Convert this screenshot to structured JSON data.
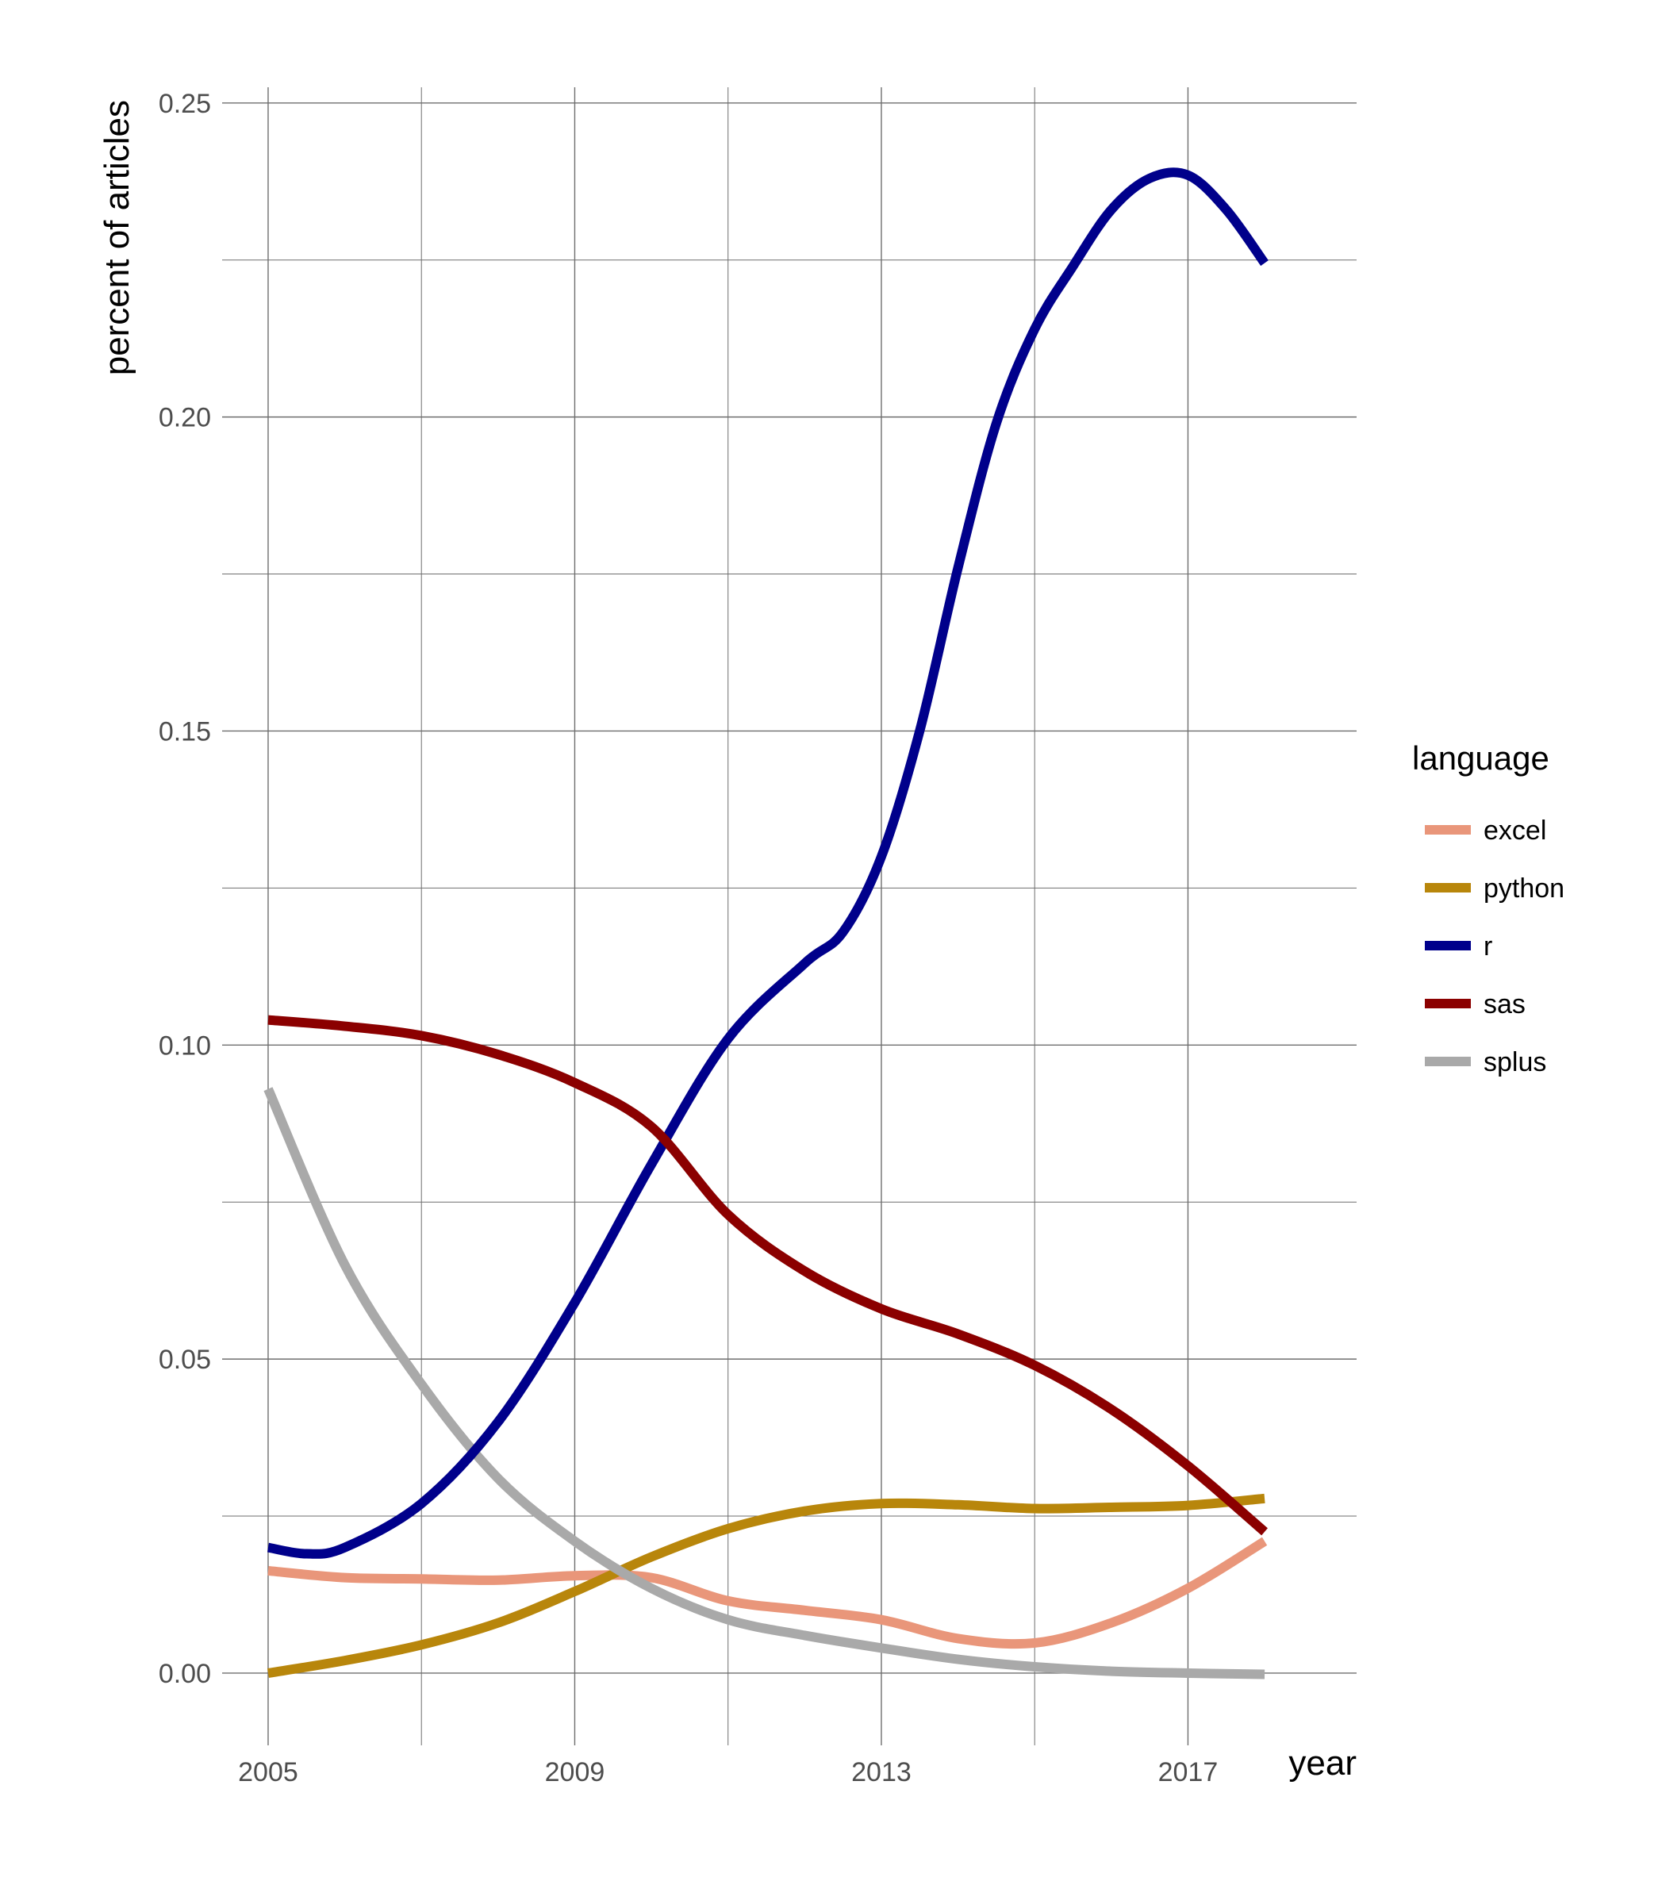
{
  "chart_data": {
    "type": "line",
    "title": "",
    "xlabel": "year",
    "ylabel": "percent of articles",
    "xlim": [
      2004.4,
      2019.2
    ],
    "ylim": [
      -0.0115,
      0.2525
    ],
    "x_ticks": [
      2005,
      2009,
      2013,
      2017
    ],
    "x_tick_labels": [
      "2005",
      "2009",
      "2013",
      "2017"
    ],
    "x_minor_ticks": [
      2007,
      2011,
      2015
    ],
    "y_ticks": [
      0.0,
      0.05,
      0.1,
      0.15,
      0.2,
      0.25
    ],
    "y_tick_labels": [
      "0.00",
      "0.05",
      "0.10",
      "0.15",
      "0.20",
      "0.25"
    ],
    "y_minor_ticks": [
      0.025,
      0.075,
      0.125,
      0.175,
      0.225
    ],
    "grid": true,
    "legend": {
      "title": "language",
      "position": "right"
    },
    "series": [
      {
        "name": "excel",
        "color": "#E9967A",
        "x": [
          2005,
          2006,
          2007,
          2008,
          2009,
          2010,
          2011,
          2012,
          2013,
          2014,
          2015,
          2016,
          2017,
          2018
        ],
        "values": [
          0.0163,
          0.0152,
          0.015,
          0.0148,
          0.0155,
          0.0152,
          0.0115,
          0.01,
          0.0085,
          0.0055,
          0.0048,
          0.008,
          0.0135,
          0.021
        ]
      },
      {
        "name": "python",
        "color": "#B8860B",
        "x": [
          2005,
          2006,
          2007,
          2008,
          2009,
          2010,
          2011,
          2012,
          2013,
          2014,
          2015,
          2016,
          2017,
          2018
        ],
        "values": [
          0.0,
          0.002,
          0.0045,
          0.008,
          0.013,
          0.0185,
          0.023,
          0.0258,
          0.027,
          0.0268,
          0.0262,
          0.0264,
          0.0267,
          0.0278
        ]
      },
      {
        "name": "r",
        "color": "#00008B",
        "x": [
          2005,
          2005.5,
          2006,
          2007,
          2008,
          2009,
          2010,
          2011,
          2012,
          2012.5,
          2013,
          2013.5,
          2014,
          2014.5,
          2015,
          2015.5,
          2016,
          2016.5,
          2017,
          2017.5,
          2018
        ],
        "values": [
          0.02,
          0.019,
          0.02,
          0.027,
          0.04,
          0.059,
          0.081,
          0.101,
          0.113,
          0.118,
          0.13,
          0.15,
          0.176,
          0.199,
          0.214,
          0.224,
          0.233,
          0.238,
          0.2385,
          0.233,
          0.2245
        ]
      },
      {
        "name": "sas",
        "color": "#8B0000",
        "x": [
          2005,
          2006,
          2007,
          2008,
          2009,
          2010,
          2011,
          2012,
          2013,
          2014,
          2015,
          2016,
          2017,
          2018
        ],
        "values": [
          0.104,
          0.103,
          0.1015,
          0.0985,
          0.094,
          0.087,
          0.073,
          0.064,
          0.058,
          0.054,
          0.049,
          0.042,
          0.033,
          0.0225
        ]
      },
      {
        "name": "splus",
        "color": "#A9A9A9",
        "x": [
          2005,
          2006,
          2007,
          2008,
          2009,
          2010,
          2011,
          2012,
          2013,
          2014,
          2015,
          2016,
          2017,
          2018
        ],
        "values": [
          0.093,
          0.065,
          0.046,
          0.031,
          0.021,
          0.0135,
          0.0085,
          0.006,
          0.004,
          0.0022,
          0.001,
          0.0003,
          0.0,
          -0.0002
        ]
      }
    ]
  }
}
